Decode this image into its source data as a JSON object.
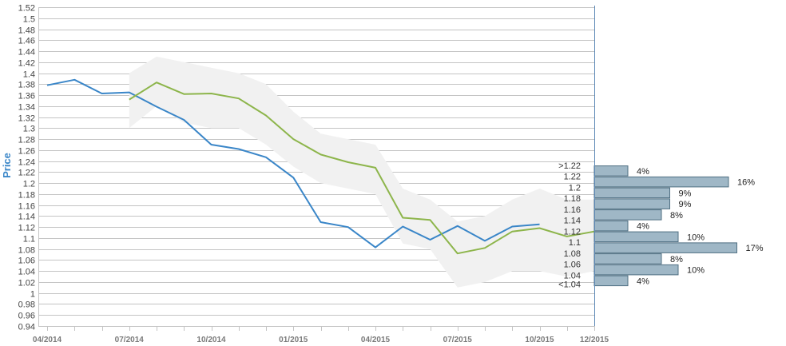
{
  "chart_data": {
    "type": "line",
    "ylabel": "Price",
    "ylim": [
      0.94,
      1.52
    ],
    "yticks": [
      "0.94",
      "0.96",
      "0.98",
      "1",
      "1.02",
      "1.04",
      "1.06",
      "1.08",
      "1.1",
      "1.12",
      "1.14",
      "1.16",
      "1.18",
      "1.2",
      "1.22",
      "1.24",
      "1.26",
      "1.28",
      "1.3",
      "1.32",
      "1.34",
      "1.36",
      "1.38",
      "1.4",
      "1.42",
      "1.44",
      "1.46",
      "1.48",
      "1.5",
      "1.52"
    ],
    "xlim": [
      "2014-04",
      "2015-12"
    ],
    "xticks": [
      "04/2014",
      "07/2014",
      "10/2014",
      "01/2015",
      "04/2015",
      "07/2015",
      "10/2015",
      "12/2015"
    ],
    "grid": true,
    "series": [
      {
        "color": "#3a86c8",
        "x": [
          "2014-04",
          "2014-05",
          "2014-06",
          "2014-07",
          "2014-08",
          "2014-09",
          "2014-10",
          "2014-11",
          "2014-12",
          "2015-01",
          "2015-02",
          "2015-03",
          "2015-04",
          "2015-05",
          "2015-06",
          "2015-07",
          "2015-08",
          "2015-09",
          "2015-10"
        ],
        "values": [
          1.378,
          1.388,
          1.363,
          1.365,
          1.339,
          1.315,
          1.27,
          1.262,
          1.247,
          1.21,
          1.129,
          1.12,
          1.083,
          1.121,
          1.097,
          1.122,
          1.095,
          1.121,
          1.125
        ]
      },
      {
        "color": "#8db54b",
        "x": [
          "2014-07",
          "2014-08",
          "2014-09",
          "2014-10",
          "2014-11",
          "2014-12",
          "2015-01",
          "2015-02",
          "2015-03",
          "2015-04",
          "2015-05",
          "2015-06",
          "2015-07",
          "2015-08",
          "2015-09",
          "2015-10",
          "2015-11",
          "2015-12"
        ],
        "values": [
          1.352,
          1.383,
          1.362,
          1.363,
          1.354,
          1.323,
          1.28,
          1.252,
          1.238,
          1.228,
          1.137,
          1.133,
          1.072,
          1.082,
          1.112,
          1.118,
          1.103,
          1.112
        ]
      }
    ],
    "band": {
      "color": "#f1f1f1",
      "x": [
        "2014-07",
        "2014-08",
        "2014-09",
        "2014-10",
        "2014-11",
        "2014-12",
        "2015-01",
        "2015-02",
        "2015-03",
        "2015-04",
        "2015-05",
        "2015-06",
        "2015-07",
        "2015-08",
        "2015-09",
        "2015-10",
        "2015-11",
        "2015-12"
      ],
      "upper": [
        1.4,
        1.43,
        1.42,
        1.41,
        1.4,
        1.38,
        1.33,
        1.29,
        1.28,
        1.27,
        1.19,
        1.17,
        1.13,
        1.14,
        1.17,
        1.19,
        1.17,
        1.17
      ],
      "lower": [
        1.3,
        1.34,
        1.31,
        1.3,
        1.3,
        1.27,
        1.23,
        1.2,
        1.19,
        1.18,
        1.09,
        1.08,
        1.01,
        1.02,
        1.04,
        1.04,
        1.03,
        1.04
      ]
    },
    "histogram": {
      "color": "#9fb7c6",
      "categories": [
        ">1.22",
        "1.22",
        "1.2",
        "1.18",
        "1.16",
        "1.14",
        "1.12",
        "1.1",
        "1.08",
        "1.06",
        "1.04",
        "<1.04"
      ],
      "values": [
        4,
        16,
        9,
        9,
        8,
        4,
        10,
        17,
        8,
        10,
        4,
        null
      ],
      "labels": [
        "4%",
        "16%",
        "9%",
        "9%",
        "8%",
        "4%",
        "10%",
        "17%",
        "8%",
        "10%",
        "4%",
        ""
      ]
    }
  }
}
